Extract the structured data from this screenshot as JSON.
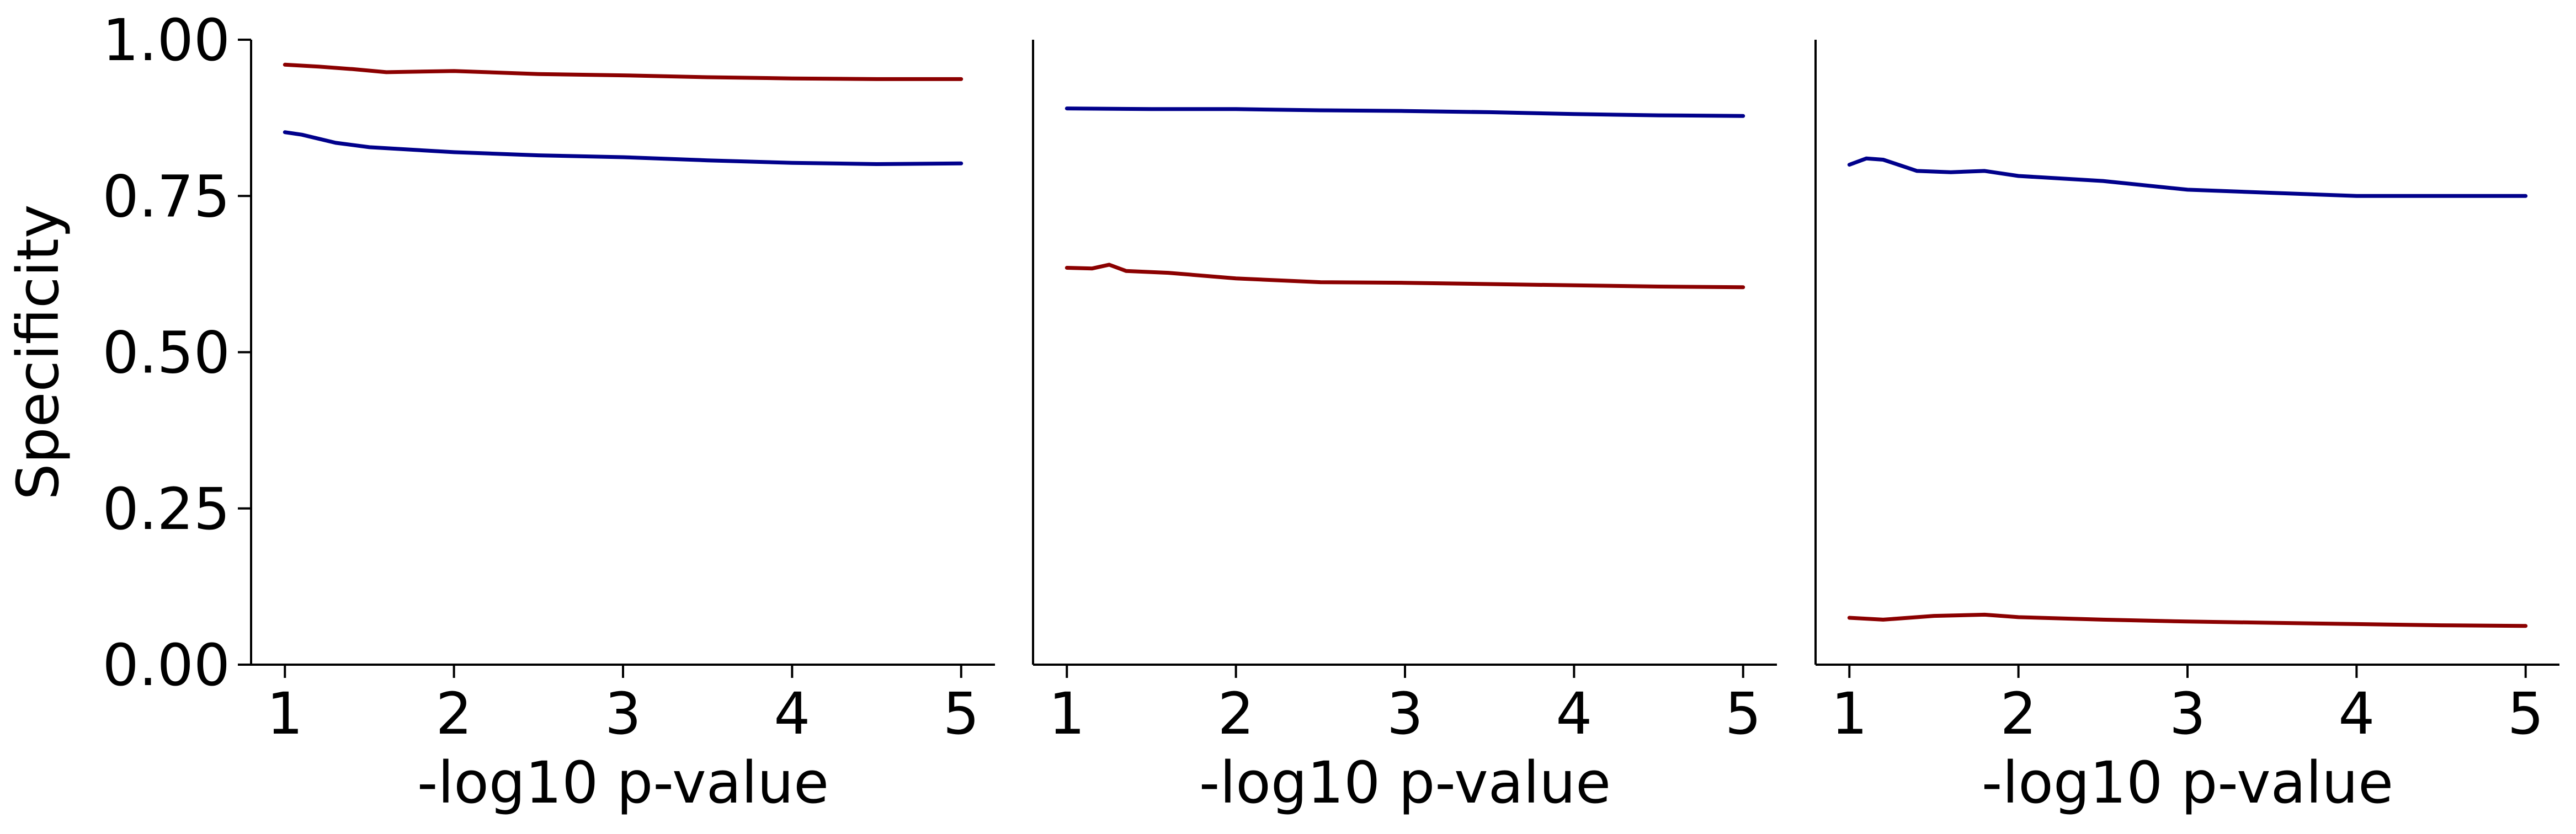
{
  "chart_data": [
    {
      "type": "line",
      "xlabel": "-log10 p-value",
      "ylabel": "Specificity",
      "xlim": [
        0.8,
        5.2
      ],
      "ylim": [
        0,
        1
      ],
      "xticks": [
        1,
        2,
        3,
        4,
        5
      ],
      "xtick_labels": [
        "1",
        "2",
        "3",
        "4",
        "5"
      ],
      "yticks": [
        0,
        0.25,
        0.5,
        0.75,
        1.0
      ],
      "ytick_labels": [
        "0.00",
        "0.25",
        "0.50",
        "0.75",
        "1.00"
      ],
      "grid": false,
      "series": [
        {
          "color": "#8b0000",
          "x": [
            1,
            1.2,
            1.4,
            1.6,
            2,
            2.5,
            3,
            3.5,
            4,
            4.5,
            5
          ],
          "y": [
            0.96,
            0.957,
            0.953,
            0.948,
            0.95,
            0.945,
            0.943,
            0.94,
            0.938,
            0.937,
            0.937
          ]
        },
        {
          "color": "#00008b",
          "x": [
            1,
            1.1,
            1.3,
            1.5,
            2,
            2.5,
            3,
            3.5,
            4,
            4.5,
            5
          ],
          "y": [
            0.852,
            0.848,
            0.835,
            0.828,
            0.82,
            0.815,
            0.812,
            0.807,
            0.803,
            0.801,
            0.802
          ]
        }
      ]
    },
    {
      "type": "line",
      "xlabel": "-log10 p-value",
      "ylabel": "",
      "xlim": [
        0.8,
        5.2
      ],
      "ylim": [
        0,
        1
      ],
      "xticks": [
        1,
        2,
        3,
        4,
        5
      ],
      "xtick_labels": [
        "1",
        "2",
        "3",
        "4",
        "5"
      ],
      "grid": false,
      "series": [
        {
          "color": "#00008b",
          "x": [
            1,
            1.5,
            2,
            2.5,
            3,
            3.5,
            4,
            4.5,
            5
          ],
          "y": [
            0.89,
            0.889,
            0.889,
            0.887,
            0.886,
            0.884,
            0.881,
            0.879,
            0.878
          ]
        },
        {
          "color": "#8b0000",
          "x": [
            1,
            1.15,
            1.25,
            1.35,
            1.6,
            2,
            2.5,
            3,
            3.5,
            4,
            4.5,
            5
          ],
          "y": [
            0.635,
            0.634,
            0.64,
            0.63,
            0.627,
            0.618,
            0.612,
            0.611,
            0.609,
            0.607,
            0.605,
            0.604
          ]
        }
      ]
    },
    {
      "type": "line",
      "xlabel": "-log10 p-value",
      "ylabel": "",
      "xlim": [
        0.8,
        5.2
      ],
      "ylim": [
        0,
        1
      ],
      "xticks": [
        1,
        2,
        3,
        4,
        5
      ],
      "xtick_labels": [
        "1",
        "2",
        "3",
        "4",
        "5"
      ],
      "grid": false,
      "series": [
        {
          "color": "#00008b",
          "x": [
            1,
            1.1,
            1.2,
            1.4,
            1.6,
            1.8,
            2,
            2.5,
            3,
            3.5,
            4,
            4.5,
            5
          ],
          "y": [
            0.8,
            0.81,
            0.808,
            0.79,
            0.788,
            0.79,
            0.782,
            0.774,
            0.76,
            0.755,
            0.75,
            0.75,
            0.75
          ]
        },
        {
          "color": "#8b0000",
          "x": [
            1,
            1.2,
            1.5,
            1.8,
            2,
            2.5,
            3,
            3.5,
            4,
            4.5,
            5
          ],
          "y": [
            0.075,
            0.072,
            0.078,
            0.08,
            0.076,
            0.072,
            0.069,
            0.067,
            0.065,
            0.063,
            0.062
          ]
        }
      ]
    }
  ]
}
